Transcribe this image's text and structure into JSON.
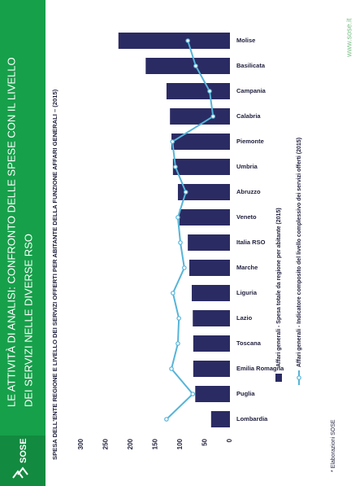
{
  "header": {
    "title_lines": [
      "LE ATTIVITÀ DI ANALISI: CONFRONTO DELLE SPESE CON IL LIVELLO",
      "DEI SERVIZI NELLE DIVERSE RSO"
    ],
    "logo": "SOSE"
  },
  "chart_data": {
    "type": "bar",
    "title": "SPESA DELL'ENTE REGIONE E LIVELLO DEI SERVIZI OFFERTI PER ABITANTE DELLA FUNZIONE AFFARI GENERALI – (2015)",
    "categories": [
      "Lombardia",
      "Puglia",
      "Emilia Romagna",
      "Toscana",
      "Lazio",
      "Liguria",
      "Marche",
      "Italia RSO",
      "Veneto",
      "Abruzzo",
      "Umbria",
      "Piemonte",
      "Calabria",
      "Campania",
      "Basilicata",
      "Molise"
    ],
    "series": [
      {
        "name": "Affari generali - Spesa totale da regione per abitante (2015)",
        "type": "bar",
        "color": "#2b2b63",
        "values": [
          38,
          70,
          74,
          74,
          75,
          77,
          82,
          85,
          102,
          105,
          115,
          118,
          121,
          128,
          170,
          225
        ]
      },
      {
        "name": "Affari generali - Indicatore composito del livello complessivo dei servizi offerti (2015)",
        "type": "line",
        "color": "#56b4d8",
        "values": [
          128,
          75,
          118,
          105,
          103,
          115,
          92,
          100,
          105,
          89,
          110,
          116,
          34,
          41,
          69,
          85
        ]
      }
    ],
    "ylim": [
      0,
      300
    ],
    "yticks": [
      0,
      50,
      100,
      150,
      200,
      250,
      300
    ],
    "grid": false
  },
  "footer": {
    "note": "* Elaborazioni SOSE",
    "website": "www.sose.it"
  }
}
